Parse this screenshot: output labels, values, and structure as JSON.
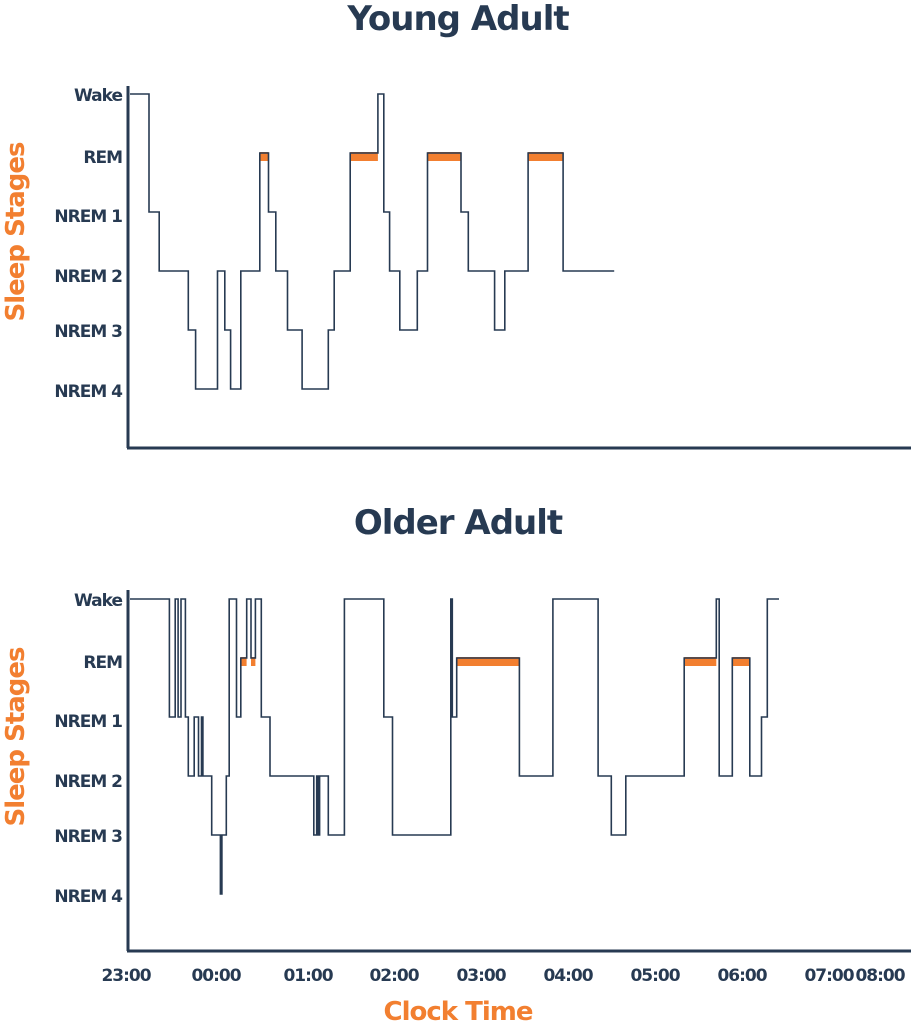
{
  "chart_data": [
    {
      "type": "line",
      "step": true,
      "title": "Young Adult",
      "ylabel": "Sleep Stages",
      "xlabel": "",
      "stages": [
        "Wake",
        "REM",
        "NREM 1",
        "NREM 2",
        "NREM 3",
        "NREM 4"
      ],
      "colors": {
        "line": "#273a52",
        "rem": "#f27f30",
        "axis": "#273a52"
      },
      "grid": false,
      "hypnogram": [
        {
          "t": "23:00",
          "stage": "Wake"
        },
        {
          "t": "23:13",
          "stage": "NREM 1"
        },
        {
          "t": "23:20",
          "stage": "NREM 2"
        },
        {
          "t": "23:40",
          "stage": "NREM 3"
        },
        {
          "t": "23:45",
          "stage": "NREM 4"
        },
        {
          "t": "00:00",
          "stage": "NREM 2"
        },
        {
          "t": "00:05",
          "stage": "NREM 3"
        },
        {
          "t": "00:09",
          "stage": "NREM 4"
        },
        {
          "t": "00:16",
          "stage": "NREM 2"
        },
        {
          "t": "00:29",
          "stage": "REM"
        },
        {
          "t": "00:35",
          "stage": "NREM 1"
        },
        {
          "t": "00:40",
          "stage": "NREM 2"
        },
        {
          "t": "00:48",
          "stage": "NREM 3"
        },
        {
          "t": "00:58",
          "stage": "NREM 4"
        },
        {
          "t": "01:16",
          "stage": "NREM 3"
        },
        {
          "t": "01:20",
          "stage": "NREM 2"
        },
        {
          "t": "01:31",
          "stage": "REM"
        },
        {
          "t": "01:50",
          "stage": "Wake"
        },
        {
          "t": "01:54",
          "stage": "NREM 1"
        },
        {
          "t": "01:58",
          "stage": "NREM 2"
        },
        {
          "t": "02:05",
          "stage": "NREM 3"
        },
        {
          "t": "02:17",
          "stage": "NREM 2"
        },
        {
          "t": "02:24",
          "stage": "REM"
        },
        {
          "t": "02:47",
          "stage": "NREM 1"
        },
        {
          "t": "02:52",
          "stage": "NREM 2"
        },
        {
          "t": "03:10",
          "stage": "NREM 3"
        },
        {
          "t": "03:17",
          "stage": "NREM 2"
        },
        {
          "t": "03:33",
          "stage": "REM"
        },
        {
          "t": "03:57",
          "stage": "NREM 2"
        },
        {
          "t": "04:32",
          "stage": "NREM 2"
        }
      ],
      "rem_periods": [
        [
          "00:29",
          "00:35"
        ],
        [
          "01:31",
          "01:50"
        ],
        [
          "02:24",
          "02:47"
        ],
        [
          "03:33",
          "03:57"
        ]
      ]
    },
    {
      "type": "line",
      "step": true,
      "title": "Older Adult",
      "ylabel": "Sleep Stages",
      "xlabel": "Clock Time",
      "x_ticks": [
        "23:00",
        "00:00",
        "01:00",
        "02:00",
        "03:00",
        "04:00",
        "05:00",
        "06:00",
        "07:00",
        "08:00"
      ],
      "stages": [
        "Wake",
        "REM",
        "NREM 1",
        "NREM 2",
        "NREM 3",
        "NREM 4"
      ],
      "colors": {
        "line": "#273a52",
        "rem": "#f27f30",
        "axis": "#273a52"
      },
      "grid": false,
      "hypnogram": [
        {
          "t": "23:00",
          "stage": "Wake"
        },
        {
          "t": "23:27",
          "stage": "NREM 1"
        },
        {
          "t": "23:31",
          "stage": "Wake"
        },
        {
          "t": "23:33",
          "stage": "NREM 1"
        },
        {
          "t": "23:35",
          "stage": "Wake"
        },
        {
          "t": "23:38",
          "stage": "NREM 1"
        },
        {
          "t": "23:40",
          "stage": "NREM 2"
        },
        {
          "t": "23:44",
          "stage": "NREM 1"
        },
        {
          "t": "23:47",
          "stage": "NREM 2"
        },
        {
          "t": "23:49",
          "stage": "NREM 1"
        },
        {
          "t": "23:50",
          "stage": "NREM 2"
        },
        {
          "t": "23:56",
          "stage": "NREM 3"
        },
        {
          "t": "00:02",
          "stage": "NREM 4"
        },
        {
          "t": "00:03",
          "stage": "NREM 3"
        },
        {
          "t": "00:06",
          "stage": "NREM 2"
        },
        {
          "t": "00:08",
          "stage": "Wake"
        },
        {
          "t": "00:13",
          "stage": "NREM 1"
        },
        {
          "t": "00:16",
          "stage": "REM"
        },
        {
          "t": "00:20",
          "stage": "Wake"
        },
        {
          "t": "00:23",
          "stage": "REM"
        },
        {
          "t": "00:26",
          "stage": "Wake"
        },
        {
          "t": "00:30",
          "stage": "NREM 1"
        },
        {
          "t": "00:36",
          "stage": "NREM 2"
        },
        {
          "t": "01:06",
          "stage": "NREM 3"
        },
        {
          "t": "01:08",
          "stage": "NREM 2"
        },
        {
          "t": "01:09",
          "stage": "NREM 3"
        },
        {
          "t": "01:10",
          "stage": "NREM 2"
        },
        {
          "t": "01:16",
          "stage": "NREM 3"
        },
        {
          "t": "01:27",
          "stage": "Wake"
        },
        {
          "t": "01:54",
          "stage": "NREM 1"
        },
        {
          "t": "02:00",
          "stage": "NREM 3"
        },
        {
          "t": "02:40",
          "stage": "Wake"
        },
        {
          "t": "02:41",
          "stage": "NREM 1"
        },
        {
          "t": "02:44",
          "stage": "REM"
        },
        {
          "t": "03:27",
          "stage": "NREM 2"
        },
        {
          "t": "03:50",
          "stage": "Wake"
        },
        {
          "t": "04:21",
          "stage": "NREM 2"
        },
        {
          "t": "04:30",
          "stage": "NREM 3"
        },
        {
          "t": "04:40",
          "stage": "NREM 2"
        },
        {
          "t": "05:20",
          "stage": "REM"
        },
        {
          "t": "05:42",
          "stage": "Wake"
        },
        {
          "t": "05:44",
          "stage": "NREM 2"
        },
        {
          "t": "05:53",
          "stage": "REM"
        },
        {
          "t": "06:05",
          "stage": "NREM 2"
        },
        {
          "t": "06:13",
          "stage": "NREM 1"
        },
        {
          "t": "06:17",
          "stage": "Wake"
        },
        {
          "t": "06:25",
          "stage": "Wake"
        }
      ],
      "rem_periods": [
        [
          "00:16",
          "00:20"
        ],
        [
          "00:23",
          "00:26"
        ],
        [
          "02:44",
          "03:27"
        ],
        [
          "05:20",
          "05:42"
        ],
        [
          "05:53",
          "06:05"
        ]
      ]
    }
  ]
}
